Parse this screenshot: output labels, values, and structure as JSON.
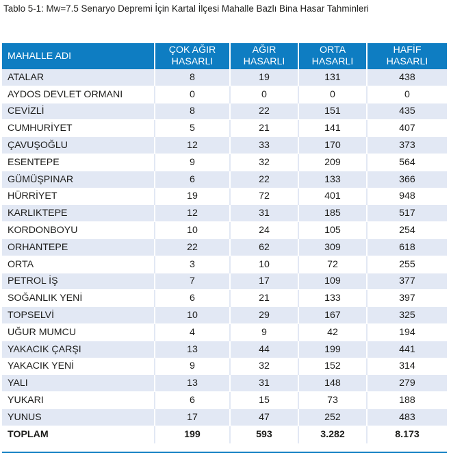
{
  "caption": "Tablo 5-1: Mw=7.5 Senaryo Depremi İçin Kartal İlçesi Mahalle Bazlı Bina Hasar Tahminleri",
  "header": {
    "name": "MAHALLE ADI",
    "cok_agir_1": "ÇOK AĞIR",
    "cok_agir_2": "HASARLI",
    "agir_1": "AĞIR",
    "agir_2": "HASARLI",
    "orta_1": "ORTA",
    "orta_2": "HASARLI",
    "hafif_1": "HAFİF",
    "hafif_2": "HASARLI"
  },
  "rows": [
    {
      "name": "ATALAR",
      "cok_agir": "8",
      "agir": "19",
      "orta": "131",
      "hafif": "438"
    },
    {
      "name": "AYDOS DEVLET ORMANI",
      "cok_agir": "0",
      "agir": "0",
      "orta": "0",
      "hafif": "0"
    },
    {
      "name": "CEVİZLİ",
      "cok_agir": "8",
      "agir": "22",
      "orta": "151",
      "hafif": "435"
    },
    {
      "name": "CUMHURİYET",
      "cok_agir": "5",
      "agir": "21",
      "orta": "141",
      "hafif": "407"
    },
    {
      "name": "ÇAVUŞOĞLU",
      "cok_agir": "12",
      "agir": "33",
      "orta": "170",
      "hafif": "373"
    },
    {
      "name": "ESENTEPE",
      "cok_agir": "9",
      "agir": "32",
      "orta": "209",
      "hafif": "564"
    },
    {
      "name": "GÜMÜŞPINAR",
      "cok_agir": "6",
      "agir": "22",
      "orta": "133",
      "hafif": "366"
    },
    {
      "name": "HÜRRİYET",
      "cok_agir": "19",
      "agir": "72",
      "orta": "401",
      "hafif": "948"
    },
    {
      "name": "KARLIKTEPE",
      "cok_agir": "12",
      "agir": "31",
      "orta": "185",
      "hafif": "517"
    },
    {
      "name": "KORDONBOYU",
      "cok_agir": "10",
      "agir": "24",
      "orta": "105",
      "hafif": "254"
    },
    {
      "name": "ORHANTEPE",
      "cok_agir": "22",
      "agir": "62",
      "orta": "309",
      "hafif": "618"
    },
    {
      "name": "ORTA",
      "cok_agir": "3",
      "agir": "10",
      "orta": "72",
      "hafif": "255"
    },
    {
      "name": "PETROL İŞ",
      "cok_agir": "7",
      "agir": "17",
      "orta": "109",
      "hafif": "377"
    },
    {
      "name": "SOĞANLIK YENİ",
      "cok_agir": "6",
      "agir": "21",
      "orta": "133",
      "hafif": "397"
    },
    {
      "name": "TOPSELVİ",
      "cok_agir": "10",
      "agir": "29",
      "orta": "167",
      "hafif": "325"
    },
    {
      "name": "UĞUR MUMCU",
      "cok_agir": "4",
      "agir": "9",
      "orta": "42",
      "hafif": "194"
    },
    {
      "name": "YAKACIK ÇARŞI",
      "cok_agir": "13",
      "agir": "44",
      "orta": "199",
      "hafif": "441"
    },
    {
      "name": "YAKACIK YENİ",
      "cok_agir": "9",
      "agir": "32",
      "orta": "152",
      "hafif": "314"
    },
    {
      "name": "YALI",
      "cok_agir": "13",
      "agir": "31",
      "orta": "148",
      "hafif": "279"
    },
    {
      "name": "YUKARI",
      "cok_agir": "6",
      "agir": "15",
      "orta": "73",
      "hafif": "188"
    },
    {
      "name": "YUNUS",
      "cok_agir": "17",
      "agir": "47",
      "orta": "252",
      "hafif": "483"
    }
  ],
  "total": {
    "name": "TOPLAM",
    "cok_agir": "199",
    "agir": "593",
    "orta": "3.282",
    "hafif": "8.173"
  },
  "colors": {
    "header_bg": "#0e7dc2",
    "band_bg": "#e2e8f4",
    "header_text": "#ffffff"
  }
}
